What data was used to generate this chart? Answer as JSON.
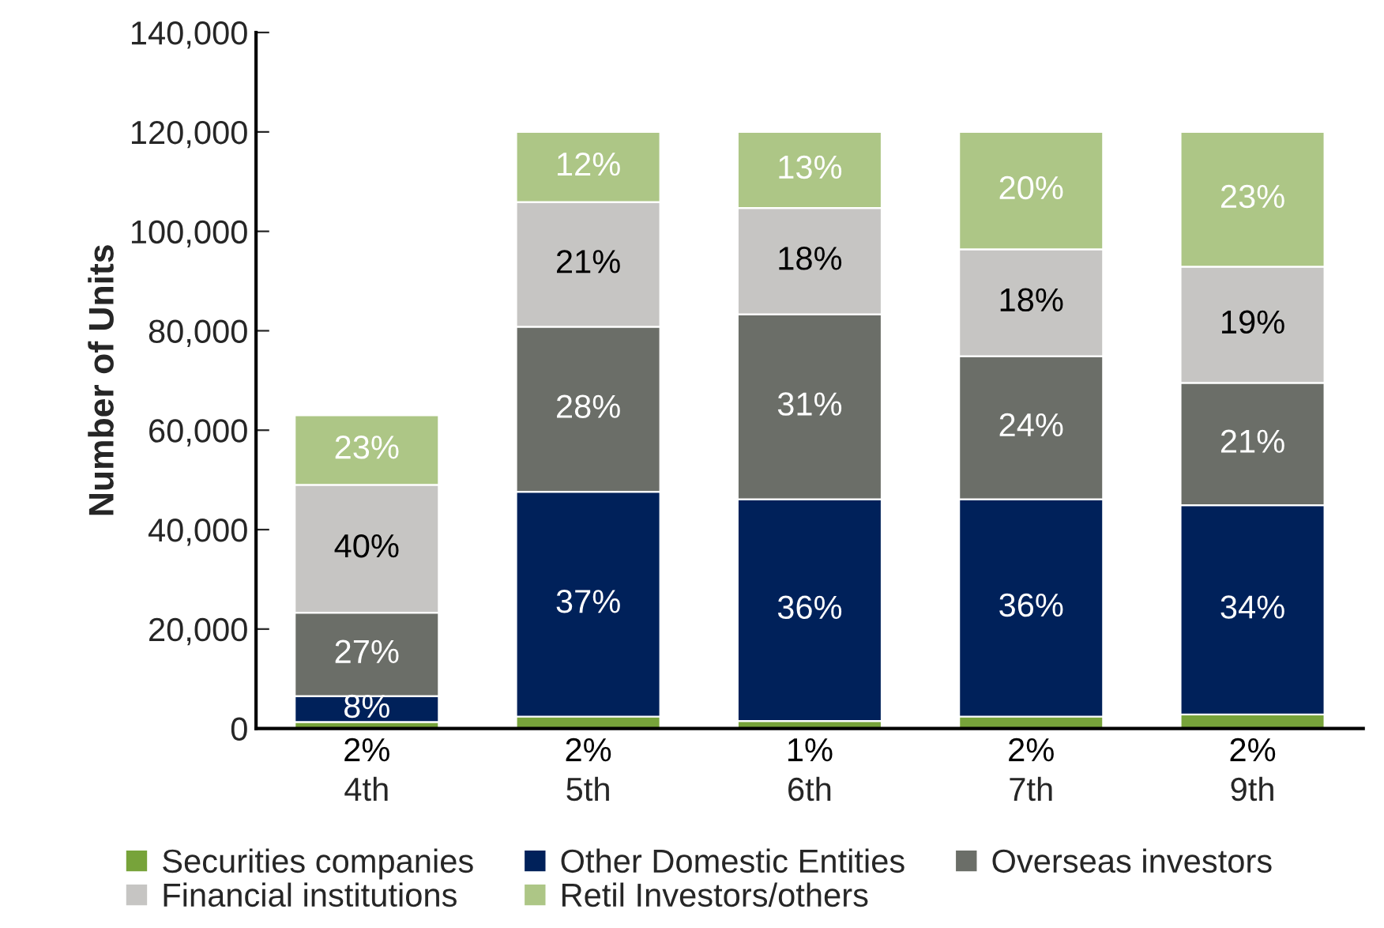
{
  "chart_data": {
    "type": "bar",
    "stacked": true,
    "ylabel": "Number of Units",
    "categories": [
      "4th",
      "5th",
      "6th",
      "7th",
      "9th"
    ],
    "series": [
      {
        "name": "Securities companies",
        "color": "#77a33a",
        "values": [
          1300,
          2400,
          1500,
          2400,
          2800
        ]
      },
      {
        "name": "Other Domestic Entities",
        "color": "#00215a",
        "values": [
          5200,
          45200,
          44600,
          43700,
          42100
        ]
      },
      {
        "name": "Overseas investors",
        "color": "#6b6e68",
        "values": [
          16800,
          33200,
          37200,
          28800,
          24600
        ]
      },
      {
        "name": "Financial institutions",
        "color": "#c6c5c3",
        "values": [
          25700,
          25100,
          21400,
          21500,
          23400
        ]
      },
      {
        "name": "Retil Investors/others",
        "color": "#adc686",
        "values": [
          14000,
          14100,
          15300,
          23600,
          27100
        ]
      }
    ],
    "annotations": [
      "2%",
      "2%",
      "1%",
      "2%",
      "2%",
      "8%",
      "37%",
      "36%",
      "36%",
      "34%",
      "27%",
      "28%",
      "31%",
      "24%",
      "21%",
      "40%",
      "21%",
      "18%",
      "18%",
      "19%",
      "23%",
      "12%",
      "13%",
      "20%",
      "23%"
    ],
    "ylim": [
      0,
      140000
    ],
    "yticks": [
      {
        "value": 0,
        "label": "0"
      },
      {
        "value": 20000,
        "label": "20,000"
      },
      {
        "value": 40000,
        "label": "40,000"
      },
      {
        "value": 60000,
        "label": "60,000"
      },
      {
        "value": 80000,
        "label": "80,000"
      },
      {
        "value": 100000,
        "label": "100,000"
      },
      {
        "value": 120000,
        "label": "120,000"
      },
      {
        "value": 140000,
        "label": "140,000"
      }
    ],
    "legend": "bottom",
    "grid": false
  }
}
